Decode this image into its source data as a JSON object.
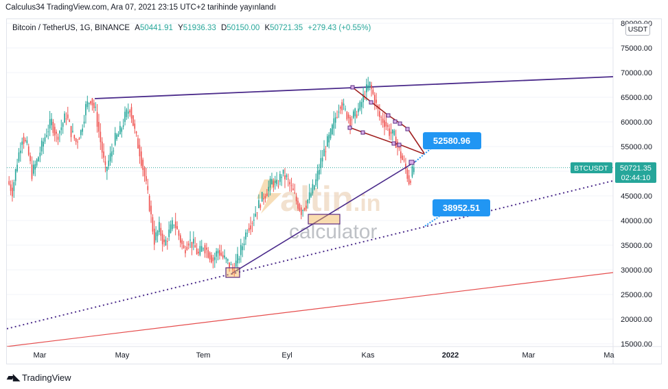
{
  "header": {
    "publish_line": "Calculus34 TradingView.com, Ara 07, 2021 23:15 UTC+2 tarihinde yayınlandı"
  },
  "legend": {
    "symbol": "Bitcoin / TetherUS, 1G, BINANCE",
    "open_label": "A",
    "open": "50441.91",
    "high_label": "Y",
    "high": "51936.33",
    "low_label": "D",
    "low": "50150.00",
    "close_label": "K",
    "close": "50721.35",
    "change": "+279.43 (+0.55%)"
  },
  "currency_button": "USDT",
  "price_tag": {
    "symbol": "BTCUSDT",
    "price": "50721.35",
    "countdown": "02:44:10"
  },
  "callouts": {
    "upper": "52580.96",
    "lower": "38952.51"
  },
  "watermark": {
    "brand_a": "altin",
    "brand_b": ".in",
    "sub": "calculator"
  },
  "footer": {
    "brand": "TradingView"
  },
  "colors": {
    "up": "#26a69a",
    "down": "#ef5350",
    "trendline": "#4a2a8a",
    "wedge": "#a02020",
    "callout": "#2196f3",
    "support_red": "#e54b4b",
    "tag": "#26a69a"
  },
  "chart_data": {
    "type": "candlestick",
    "x_ticks": [
      "Mar",
      "May",
      "Tem",
      "Eyl",
      "Kas",
      "2022",
      "Mar",
      "Ma"
    ],
    "y_ticks": [
      "80000.00",
      "75000.00",
      "70000.00",
      "65000.00",
      "60000.00",
      "55000.00",
      "50000.00",
      "45000.00",
      "40000.00",
      "35000.00",
      "30000.00",
      "25000.00",
      "20000.00",
      "15000.00"
    ],
    "ylim": [
      14000,
      80500
    ],
    "series": [
      {
        "values": [
          [
            48000,
            46000
          ],
          [
            46000,
            52000
          ],
          [
            52000,
            57000
          ],
          [
            57000,
            55000
          ],
          [
            55000,
            49500
          ],
          [
            49500,
            52000
          ],
          [
            52000,
            55000
          ],
          [
            55000,
            58000
          ],
          [
            58000,
            60000
          ],
          [
            60000,
            57000
          ],
          [
            57000,
            59000
          ],
          [
            59000,
            61500
          ],
          [
            61500,
            58000
          ],
          [
            58000,
            56000
          ],
          [
            56000,
            58000
          ],
          [
            58000,
            63000
          ],
          [
            63000,
            64800
          ],
          [
            64800,
            62000
          ],
          [
            62000,
            56000
          ],
          [
            56000,
            50000
          ],
          [
            50000,
            53000
          ],
          [
            53000,
            56500
          ],
          [
            56500,
            58000
          ],
          [
            58000,
            61000
          ],
          [
            61000,
            63000
          ],
          [
            63000,
            58000
          ],
          [
            58000,
            54000
          ],
          [
            54000,
            49000
          ],
          [
            49000,
            43000
          ],
          [
            43000,
            36000
          ],
          [
            36000,
            38500
          ],
          [
            38500,
            35000
          ],
          [
            35000,
            37500
          ],
          [
            37500,
            39800
          ],
          [
            39800,
            37000
          ],
          [
            37000,
            34000
          ],
          [
            34000,
            36000
          ],
          [
            36000,
            35000
          ],
          [
            35000,
            33000
          ],
          [
            33000,
            35000
          ],
          [
            35000,
            33500
          ],
          [
            33500,
            32000
          ],
          [
            32000,
            34000
          ],
          [
            34000,
            32500
          ],
          [
            32500,
            31500
          ],
          [
            31500,
            30000
          ],
          [
            30000,
            32000
          ],
          [
            32000,
            35000
          ],
          [
            35000,
            38500
          ],
          [
            38500,
            40000
          ],
          [
            40000,
            42500
          ],
          [
            42500,
            44500
          ],
          [
            44500,
            46000
          ],
          [
            46000,
            48000
          ],
          [
            48000,
            47000
          ],
          [
            47000,
            49500
          ],
          [
            49500,
            48500
          ],
          [
            48500,
            46500
          ],
          [
            46500,
            44000
          ],
          [
            44000,
            42000
          ],
          [
            42000,
            43500
          ],
          [
            43500,
            45500
          ],
          [
            45500,
            48000
          ],
          [
            48000,
            52000
          ],
          [
            52000,
            55000
          ],
          [
            55000,
            57500
          ],
          [
            57500,
            61000
          ],
          [
            61000,
            64000
          ],
          [
            64000,
            62000
          ],
          [
            62000,
            60500
          ],
          [
            60500,
            61500
          ],
          [
            61500,
            63000
          ],
          [
            63000,
            66000
          ],
          [
            66000,
            67500
          ],
          [
            67500,
            64500
          ],
          [
            64500,
            61000
          ],
          [
            61000,
            60000
          ],
          [
            60000,
            58000
          ],
          [
            58000,
            57000
          ],
          [
            57000,
            54000
          ],
          [
            54000,
            51500
          ],
          [
            51500,
            48000
          ],
          [
            48000,
            50721
          ]
        ]
      }
    ],
    "trendlines": [
      {
        "name": "resistance",
        "from": [
          "Nis",
          64800
        ],
        "to": [
          "2022 Mar",
          69200
        ]
      },
      {
        "name": "rising",
        "from": [
          "Tem",
          29300
        ],
        "to": [
          "Kas",
          52580.96
        ]
      },
      {
        "name": "dotted-support",
        "from": [
          "Şub",
          18200
        ],
        "to": [
          "2022 Mar",
          48000
        ]
      },
      {
        "name": "red-support",
        "from": [
          "Şub",
          14600
        ],
        "to": [
          "2022 Mar",
          29400
        ]
      }
    ]
  }
}
